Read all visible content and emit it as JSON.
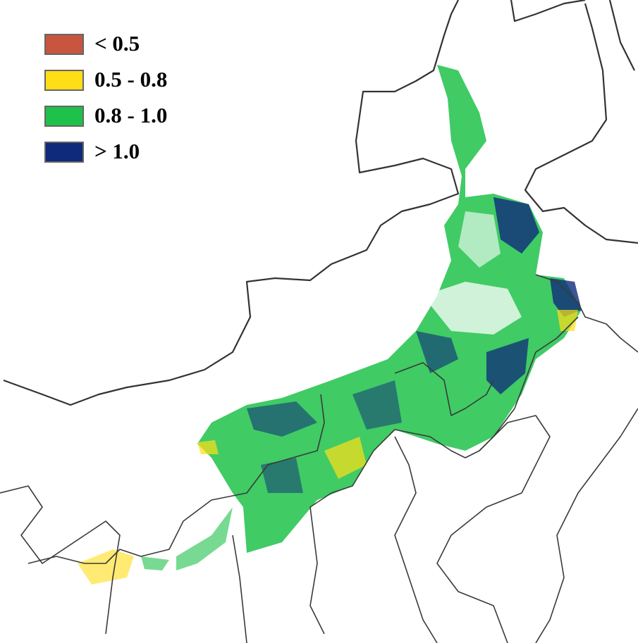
{
  "legend": {
    "items": [
      {
        "label": "< 0.5",
        "color": "#c8553d"
      },
      {
        "label": "0.5 - 0.8",
        "color": "#ffde17"
      },
      {
        "label": "0.8 - 1.0",
        "color": "#1ec24a"
      },
      {
        "label": "> 1.0",
        "color": "#0f2a7a"
      }
    ]
  }
}
